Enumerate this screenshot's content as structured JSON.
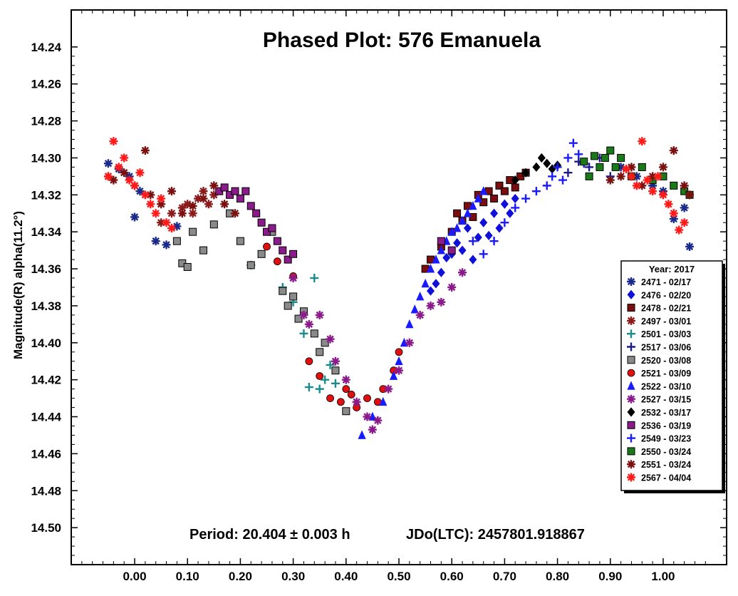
{
  "chart_data": {
    "type": "scatter",
    "title": "Phased Plot: 576 Emanuela",
    "xlabel": "",
    "ylabel": "Magnitude(R) alpha(11.2°)",
    "xlim": [
      -0.12,
      1.12
    ],
    "ylim": [
      14.52,
      14.22
    ],
    "y_inverted": true,
    "x_ticks": [
      "0.00",
      "0.10",
      "0.20",
      "0.30",
      "0.40",
      "0.50",
      "0.60",
      "0.70",
      "0.80",
      "0.90",
      "1.00"
    ],
    "y_ticks": [
      "14.24",
      "14.26",
      "14.28",
      "14.30",
      "14.32",
      "14.34",
      "14.36",
      "14.38",
      "14.40",
      "14.42",
      "14.44",
      "14.46",
      "14.48",
      "14.50"
    ],
    "annotations": {
      "period": "Period: 20.404 ± 0.003 h",
      "epoch": "JDo(LTC): 2457801.918867"
    },
    "legend": {
      "title": "Year: 2017",
      "placement": "right"
    },
    "grid": false,
    "series": [
      {
        "name": "2471 - 02/17",
        "marker": "asterisk",
        "color": "#1a2a8a",
        "x": [
          -0.05,
          -0.03,
          -0.01,
          0.0,
          0.01,
          0.04,
          0.06,
          0.08,
          0.92,
          0.95,
          0.98,
          1.0,
          1.02,
          1.04,
          1.05
        ],
        "y": [
          14.303,
          14.306,
          14.31,
          14.332,
          14.318,
          14.345,
          14.347,
          14.337,
          14.305,
          14.31,
          14.315,
          14.318,
          14.333,
          14.327,
          14.348
        ]
      },
      {
        "name": "2476 - 02/20",
        "marker": "diamond",
        "color": "#1010d8",
        "x": [
          0.56,
          0.57,
          0.58,
          0.59,
          0.6,
          0.61,
          0.62,
          0.63,
          0.64,
          0.65,
          0.66,
          0.67,
          0.68,
          0.69,
          0.7,
          0.71,
          0.72
        ],
        "y": [
          14.372,
          14.368,
          14.362,
          14.354,
          14.352,
          14.346,
          14.35,
          14.338,
          14.355,
          14.343,
          14.335,
          14.342,
          14.33,
          14.338,
          14.325,
          14.33,
          14.322
        ]
      },
      {
        "name": "2478 - 02/21",
        "marker": "square",
        "color": "#7a0d0d",
        "x": [
          0.55,
          0.56,
          0.58,
          0.6,
          0.61,
          0.62,
          0.63,
          0.64,
          0.65,
          0.66,
          0.67,
          0.68,
          0.69,
          0.7,
          0.71,
          0.72,
          0.73,
          0.74
        ],
        "y": [
          14.36,
          14.355,
          14.348,
          14.34,
          14.33,
          14.334,
          14.326,
          14.332,
          14.32,
          14.324,
          14.318,
          14.322,
          14.315,
          14.318,
          14.312,
          14.316,
          14.31,
          14.308
        ]
      },
      {
        "name": "2497 - 03/01",
        "marker": "asterisk",
        "color": "#8b1a1a",
        "x": [
          0.05,
          0.07,
          0.09,
          0.1,
          0.11,
          0.12,
          0.13,
          0.14,
          0.15
        ],
        "y": [
          14.335,
          14.33,
          14.327,
          14.325,
          14.33,
          14.322,
          14.318,
          14.325,
          14.32
        ]
      },
      {
        "name": "2501 - 03/03",
        "marker": "plus",
        "color": "#1a8c8c",
        "x": [
          0.22,
          0.28,
          0.3,
          0.32,
          0.33,
          0.34,
          0.35,
          0.36,
          0.37,
          0.38
        ],
        "y": [
          14.358,
          14.37,
          14.378,
          14.395,
          14.424,
          14.365,
          14.425,
          14.42,
          14.412,
          14.422
        ]
      },
      {
        "name": "2517 - 03/06",
        "marker": "plus",
        "color": "#1a1a8a",
        "x": [
          0.82,
          0.84,
          0.86,
          0.88,
          0.9
        ],
        "y": [
          14.308,
          14.302,
          14.305,
          14.3,
          14.31
        ]
      },
      {
        "name": "2520 - 03/08",
        "marker": "square",
        "color": "#8a8a8a",
        "x": [
          0.08,
          0.09,
          0.1,
          0.11,
          0.13,
          0.15,
          0.18,
          0.2,
          0.22,
          0.24,
          0.26,
          0.28,
          0.29,
          0.3,
          0.31,
          0.32,
          0.34,
          0.35,
          0.36,
          0.38,
          0.4
        ],
        "y": [
          14.345,
          14.357,
          14.359,
          14.34,
          14.35,
          14.336,
          14.33,
          14.345,
          14.358,
          14.352,
          14.34,
          14.372,
          14.38,
          14.375,
          14.387,
          14.383,
          14.395,
          14.405,
          14.4,
          14.415,
          14.437
        ]
      },
      {
        "name": "2521 - 03/09",
        "marker": "circle",
        "color": "#e01010",
        "x": [
          0.25,
          0.27,
          0.3,
          0.33,
          0.35,
          0.37,
          0.39,
          0.4,
          0.41,
          0.42,
          0.44,
          0.46,
          0.47,
          0.49,
          0.5
        ],
        "y": [
          14.348,
          14.356,
          14.364,
          14.41,
          14.418,
          14.43,
          14.432,
          14.425,
          14.428,
          14.435,
          14.43,
          14.432,
          14.425,
          14.415,
          14.405
        ]
      },
      {
        "name": "2522 - 03/10",
        "marker": "triangle",
        "color": "#1a1aff",
        "x": [
          0.43,
          0.45,
          0.47,
          0.49,
          0.5,
          0.51,
          0.52,
          0.53,
          0.54,
          0.55,
          0.56,
          0.57,
          0.58,
          0.59,
          0.6,
          0.61,
          0.62,
          0.63,
          0.64,
          0.65,
          0.66
        ],
        "y": [
          14.45,
          14.44,
          14.432,
          14.418,
          14.41,
          14.4,
          14.39,
          14.382,
          14.375,
          14.368,
          14.36,
          14.355,
          14.35,
          14.345,
          14.34,
          14.338,
          14.334,
          14.33,
          14.326,
          14.322,
          14.318
        ]
      },
      {
        "name": "2527 - 03/15",
        "marker": "asterisk",
        "color": "#8b1a8b",
        "x": [
          0.3,
          0.32,
          0.33,
          0.35,
          0.37,
          0.38,
          0.4,
          0.42,
          0.44,
          0.45,
          0.46,
          0.48,
          0.5,
          0.52,
          0.54,
          0.56,
          0.58,
          0.6,
          0.62
        ],
        "y": [
          14.365,
          14.385,
          14.39,
          14.385,
          14.398,
          14.41,
          14.42,
          14.432,
          14.44,
          14.447,
          14.442,
          14.425,
          14.415,
          14.4,
          14.385,
          14.38,
          14.378,
          14.37,
          14.362
        ]
      },
      {
        "name": "2532 - 03/17",
        "marker": "diamond",
        "color": "#000000",
        "x": [
          0.72,
          0.74,
          0.76,
          0.77,
          0.78,
          0.79,
          0.8
        ],
        "y": [
          14.312,
          14.308,
          14.305,
          14.3,
          14.303,
          14.306,
          14.304
        ]
      },
      {
        "name": "2536 - 03/19",
        "marker": "square",
        "color": "#8b1a8b",
        "x": [
          0.16,
          0.17,
          0.18,
          0.19,
          0.2,
          0.21,
          0.22,
          0.23,
          0.24,
          0.25,
          0.26,
          0.27,
          0.28,
          0.29,
          0.3,
          0.58,
          0.6
        ],
        "y": [
          14.318,
          14.316,
          14.32,
          14.318,
          14.322,
          14.318,
          14.326,
          14.33,
          14.335,
          14.34,
          14.338,
          14.345,
          14.35,
          14.355,
          14.352,
          14.345,
          14.35
        ]
      },
      {
        "name": "2549 - 03/23",
        "marker": "plus",
        "color": "#1a1aff",
        "x": [
          0.64,
          0.66,
          0.68,
          0.7,
          0.72,
          0.74,
          0.76,
          0.78,
          0.79,
          0.8,
          0.81,
          0.82,
          0.83,
          0.84,
          0.85
        ],
        "y": [
          14.345,
          14.352,
          14.345,
          14.335,
          14.327,
          14.322,
          14.318,
          14.315,
          14.31,
          14.305,
          14.312,
          14.3,
          14.292,
          14.298,
          14.303
        ]
      },
      {
        "name": "2550 - 03/24",
        "marker": "square",
        "color": "#1a7a1a",
        "x": [
          0.85,
          0.86,
          0.87,
          0.88,
          0.89,
          0.9,
          0.91,
          0.92,
          0.94,
          0.96,
          0.98,
          1.0,
          1.02,
          1.04,
          1.05
        ],
        "y": [
          14.302,
          14.31,
          14.299,
          14.305,
          14.3,
          14.296,
          14.305,
          14.3,
          14.31,
          14.305,
          14.312,
          14.31,
          14.315,
          14.318,
          14.32
        ]
      },
      {
        "name": "2551 - 03/24",
        "marker": "asterisk",
        "color": "#7a1010",
        "x": [
          -0.05,
          -0.04,
          -0.02,
          0.0,
          0.02,
          0.03,
          0.05,
          0.07,
          0.09,
          0.11,
          0.13,
          0.15,
          0.17,
          0.19,
          0.9,
          0.92,
          0.94,
          0.96,
          0.98,
          1.0,
          1.02,
          1.04,
          1.05
        ],
        "y": [
          14.31,
          14.312,
          14.308,
          14.315,
          14.296,
          14.32,
          14.325,
          14.318,
          14.33,
          14.326,
          14.322,
          14.315,
          14.325,
          14.33,
          14.312,
          14.31,
          14.305,
          14.315,
          14.31,
          14.305,
          14.296,
          14.315,
          14.32
        ]
      },
      {
        "name": "2567 - 04/04",
        "marker": "asterisk",
        "color": "#ff1a1a",
        "x": [
          -0.05,
          -0.04,
          -0.03,
          -0.02,
          -0.01,
          0.0,
          0.01,
          0.02,
          0.03,
          0.04,
          0.05,
          0.06,
          0.07,
          0.93,
          0.94,
          0.95,
          0.96,
          0.97,
          0.98,
          0.99,
          1.0,
          1.01,
          1.02,
          1.03,
          1.04
        ],
        "y": [
          14.31,
          14.291,
          14.305,
          14.3,
          14.312,
          14.315,
          14.308,
          14.32,
          14.325,
          14.33,
          14.322,
          14.335,
          14.338,
          14.306,
          14.31,
          14.315,
          14.291,
          14.312,
          14.318,
          14.31,
          14.32,
          14.325,
          14.33,
          14.339,
          14.335
        ]
      }
    ]
  }
}
